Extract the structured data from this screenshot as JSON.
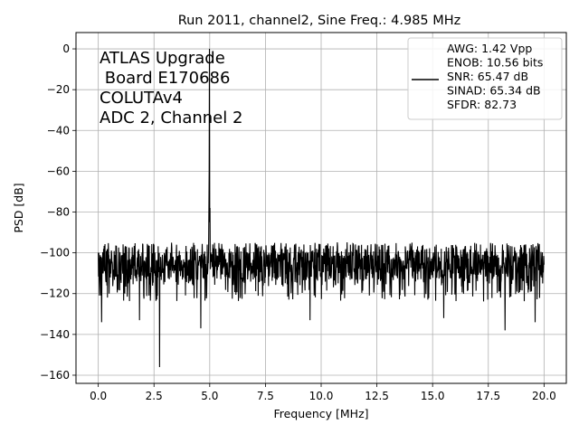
{
  "chart_data": {
    "type": "line",
    "title": "Run 2011, channel2, Sine Freq.: 4.985 MHz",
    "xlabel": "Frequency [MHz]",
    "ylabel": "PSD [dB]",
    "xlim": [
      -1.0,
      21.0
    ],
    "ylim": [
      -164,
      8
    ],
    "xticks": [
      0.0,
      2.5,
      5.0,
      7.5,
      10.0,
      12.5,
      15.0,
      17.5,
      20.0
    ],
    "xtick_labels": [
      "0.0",
      "2.5",
      "5.0",
      "7.5",
      "10.0",
      "12.5",
      "15.0",
      "17.5",
      "20.0"
    ],
    "yticks": [
      0,
      -20,
      -40,
      -60,
      -80,
      -100,
      -120,
      -140,
      -160
    ],
    "ytick_labels": [
      "0",
      "−20",
      "−40",
      "−60",
      "−80",
      "−100",
      "−120",
      "−140",
      "−160"
    ],
    "grid": true,
    "line_color": "#000000",
    "legend_position": "top-right",
    "legend_entries": [
      "AWG: 1.42 Vpp",
      "ENOB: 10.56 bits",
      "SNR: 65.47 dB",
      "SINAD: 65.34 dB",
      "SFDR: 82.73"
    ],
    "annotation_lines": [
      "ATLAS Upgrade",
      " Board E170686",
      "COLUTAv4",
      "ADC 2, Channel 2"
    ],
    "series": [
      {
        "x_range": [
          0.0,
          20.0
        ],
        "noise_floor_median": -106,
        "noise_band": [
          -118,
          -95
        ],
        "features": [
          {
            "x": 4.985,
            "y": 0,
            "label": "fundamental"
          },
          {
            "x": 2.75,
            "y": -156
          },
          {
            "x": 4.6,
            "y": -137
          },
          {
            "x": 0.15,
            "y": -134
          },
          {
            "x": 1.85,
            "y": -133
          },
          {
            "x": 9.5,
            "y": -133
          },
          {
            "x": 15.5,
            "y": -132
          },
          {
            "x": 18.25,
            "y": -138
          },
          {
            "x": 19.6,
            "y": -134
          },
          {
            "x": 5.0,
            "y": -85
          }
        ]
      }
    ]
  }
}
